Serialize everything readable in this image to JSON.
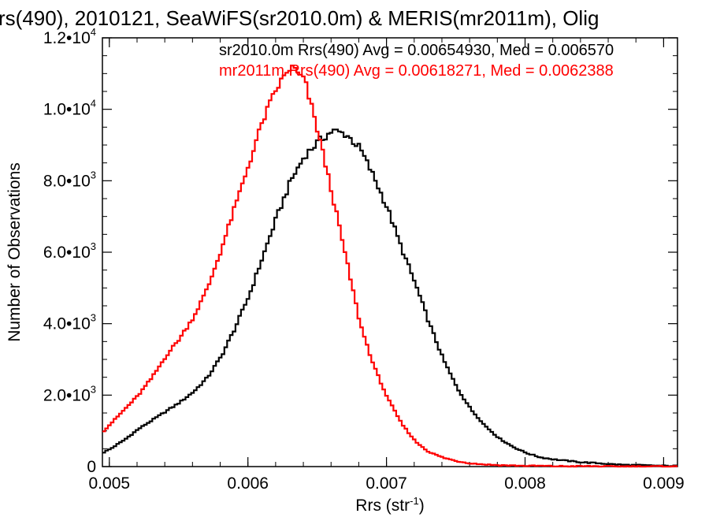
{
  "chart_data": {
    "type": "line",
    "title": "rs(490), 2010121, SeaWiFS(sr2010.0m) & MERIS(mr2011m), Olig",
    "xlabel_main": "Rrs (str",
    "xlabel_sup": "-1",
    "xlabel_end": ")",
    "ylabel": "Number of Observations",
    "xlim": [
      0.00495,
      0.0091
    ],
    "ylim": [
      0,
      12000
    ],
    "x_ticks": [
      {
        "value": 0.005,
        "label": "0.005"
      },
      {
        "value": 0.006,
        "label": "0.006"
      },
      {
        "value": 0.007,
        "label": "0.007"
      },
      {
        "value": 0.008,
        "label": "0.008"
      },
      {
        "value": 0.009,
        "label": "0.009"
      }
    ],
    "y_ticks": [
      {
        "value": 0,
        "mantissa": "0",
        "exp": ""
      },
      {
        "value": 2000,
        "mantissa": "2.0•10",
        "exp": "3"
      },
      {
        "value": 4000,
        "mantissa": "4.0•10",
        "exp": "3"
      },
      {
        "value": 6000,
        "mantissa": "6.0•10",
        "exp": "3"
      },
      {
        "value": 8000,
        "mantissa": "8.0•10",
        "exp": "3"
      },
      {
        "value": 10000,
        "mantissa": "1.0•10",
        "exp": "4"
      },
      {
        "value": 12000,
        "mantissa": "1.2•10",
        "exp": "4"
      }
    ],
    "grid": false,
    "legend_position": "top-right",
    "series": [
      {
        "name": "sr2010.0m",
        "label": "sr2010.0m Rrs(490) Avg = 0.00654930, Med = 0.006570",
        "color": "#000000",
        "x": [
          0.00495,
          0.005,
          0.0051,
          0.0052,
          0.0053,
          0.0054,
          0.0055,
          0.0056,
          0.0057,
          0.0058,
          0.0059,
          0.006,
          0.0061,
          0.0062,
          0.0063,
          0.0064,
          0.0065,
          0.0066,
          0.0067,
          0.0068,
          0.0069,
          0.007,
          0.0071,
          0.0072,
          0.0073,
          0.0074,
          0.0075,
          0.0076,
          0.0077,
          0.0078,
          0.0079,
          0.008,
          0.0081,
          0.0082,
          0.0083,
          0.0084,
          0.0085,
          0.0086,
          0.0087,
          0.0088,
          0.0089,
          0.009,
          0.0091
        ],
        "y": [
          400,
          500,
          750,
          1050,
          1300,
          1550,
          1800,
          2100,
          2500,
          3100,
          3900,
          4800,
          5900,
          7000,
          8000,
          8700,
          9100,
          9400,
          9300,
          8900,
          8100,
          7200,
          6100,
          5100,
          4000,
          3000,
          2200,
          1600,
          1150,
          800,
          560,
          380,
          260,
          200,
          160,
          120,
          100,
          70,
          50,
          40,
          30,
          20,
          20
        ]
      },
      {
        "name": "mr2011m",
        "label": "mr2011m Rrs(490) Avg = 0.00618271, Med = 0.0062388",
        "color": "#ff0000",
        "x": [
          0.00495,
          0.005,
          0.0051,
          0.0052,
          0.0053,
          0.0054,
          0.0055,
          0.0056,
          0.0057,
          0.0058,
          0.0059,
          0.006,
          0.0061,
          0.0062,
          0.0063,
          0.0064,
          0.0065,
          0.0066,
          0.0067,
          0.0068,
          0.0069,
          0.007,
          0.0071,
          0.0072,
          0.0073,
          0.0074,
          0.0075,
          0.0076,
          0.0077,
          0.0078,
          0.0079,
          0.008,
          0.0081,
          0.0082,
          0.0083,
          0.0084,
          0.0085,
          0.0086,
          0.0087,
          0.0088,
          0.0089,
          0.009,
          0.0091
        ],
        "y": [
          1000,
          1200,
          1600,
          2000,
          2500,
          3100,
          3600,
          4200,
          5000,
          6100,
          7300,
          8500,
          9700,
          10600,
          11200,
          10800,
          9300,
          7600,
          5800,
          4000,
          2800,
          1900,
          1200,
          700,
          400,
          250,
          150,
          90,
          60,
          40,
          30,
          20,
          20,
          10,
          10,
          10,
          10,
          5,
          5,
          5,
          5,
          5,
          5
        ]
      }
    ]
  }
}
